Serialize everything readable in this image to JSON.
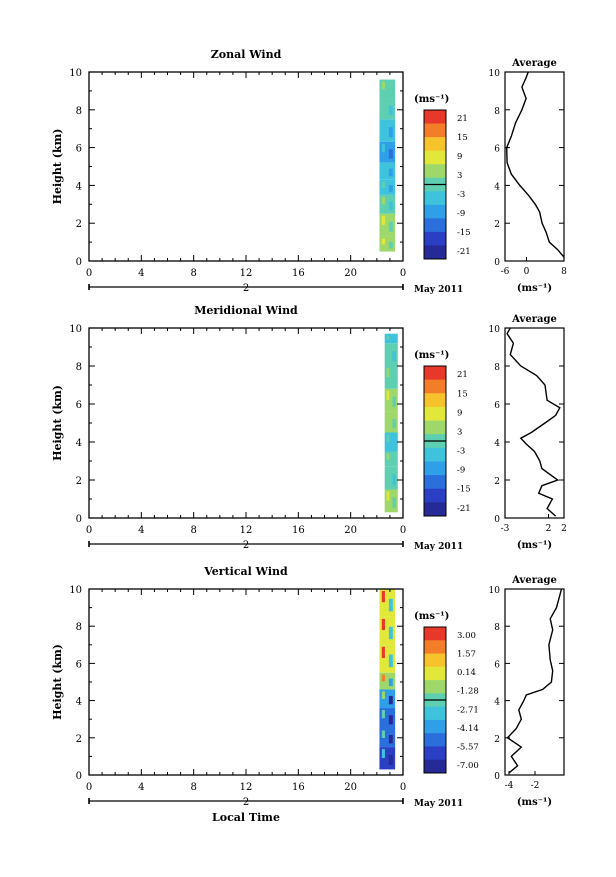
{
  "chart_data": [
    {
      "type": "heatmap",
      "title": "Zonal Wind",
      "ylabel": "Height (km)",
      "xlabel": "",
      "xticks": [
        "0",
        "4",
        "8",
        "12",
        "16",
        "20",
        "0"
      ],
      "yticks": [
        "0",
        "2",
        "4",
        "6",
        "8",
        "10"
      ],
      "day_label": "2",
      "month_label": "May 2011",
      "ylim": [
        0,
        10
      ],
      "xlim": [
        0,
        24
      ],
      "colorbar": {
        "unit": "(ms⁻¹)",
        "labels": [
          "21",
          "15",
          "9",
          "3",
          "-3",
          "-9",
          "-15",
          "-21"
        ]
      },
      "data_x_range": [
        22.2,
        23.4
      ],
      "strip": [
        {
          "y0": 0.5,
          "y1": 1.3,
          "v": 5
        },
        {
          "y0": 1.3,
          "y1": 2.5,
          "v": 4
        },
        {
          "y0": 2.5,
          "y1": 3.5,
          "v": 0
        },
        {
          "y0": 3.5,
          "y1": 4.3,
          "v": -5
        },
        {
          "y0": 4.3,
          "y1": 5.2,
          "v": -6
        },
        {
          "y0": 5.2,
          "y1": 6.3,
          "v": -9
        },
        {
          "y0": 6.3,
          "y1": 7.5,
          "v": -6
        },
        {
          "y0": 7.5,
          "y1": 8.6,
          "v": -2
        },
        {
          "y0": 8.6,
          "y1": 9.6,
          "v": 1
        }
      ],
      "average": {
        "title": "Average",
        "xticks": [
          "-6",
          "0",
          "8"
        ],
        "xlim": [
          -6,
          8
        ],
        "unit": "(ms⁻¹)",
        "profile": [
          [
            8.0,
            0.2
          ],
          [
            6.5,
            0.6
          ],
          [
            4.5,
            1.0
          ],
          [
            3.8,
            1.5
          ],
          [
            2.8,
            2.0
          ],
          [
            2.2,
            2.6
          ],
          [
            1.2,
            3.0
          ],
          [
            -0.5,
            3.5
          ],
          [
            -2.5,
            4.0
          ],
          [
            -4.5,
            4.6
          ],
          [
            -5.5,
            5.2
          ],
          [
            -5.6,
            6.0
          ],
          [
            -4.5,
            6.6
          ],
          [
            -3.5,
            7.3
          ],
          [
            -2.0,
            8.0
          ],
          [
            -1.0,
            8.6
          ],
          [
            -2.0,
            9.2
          ],
          [
            -1.0,
            9.7
          ],
          [
            -0.5,
            10.0
          ]
        ]
      }
    },
    {
      "type": "heatmap",
      "title": "Meridional Wind",
      "ylabel": "Height (km)",
      "xlabel": "",
      "xticks": [
        "0",
        "4",
        "8",
        "12",
        "16",
        "20",
        "0"
      ],
      "yticks": [
        "0",
        "2",
        "4",
        "6",
        "8",
        "10"
      ],
      "day_label": "2",
      "month_label": "May 2011",
      "ylim": [
        0,
        10
      ],
      "xlim": [
        0,
        24
      ],
      "colorbar": {
        "unit": "(ms⁻¹)",
        "labels": [
          "21",
          "15",
          "9",
          "3",
          "-3",
          "-9",
          "-15",
          "-21"
        ]
      },
      "data_x_range": [
        22.6,
        23.6
      ],
      "strip": [
        {
          "y0": 0.3,
          "y1": 1.5,
          "v": 4
        },
        {
          "y0": 1.5,
          "y1": 2.7,
          "v": -1
        },
        {
          "y0": 2.7,
          "y1": 3.5,
          "v": 2
        },
        {
          "y0": 3.5,
          "y1": 4.5,
          "v": -3
        },
        {
          "y0": 4.5,
          "y1": 5.6,
          "v": 3
        },
        {
          "y0": 5.6,
          "y1": 6.8,
          "v": 5
        },
        {
          "y0": 6.8,
          "y1": 8.0,
          "v": 2
        },
        {
          "y0": 8.0,
          "y1": 9.2,
          "v": -1
        },
        {
          "y0": 9.2,
          "y1": 9.7,
          "v": -3
        }
      ],
      "average": {
        "title": "Average",
        "xticks": [
          "-3",
          "2",
          "2"
        ],
        "xlim": [
          -3,
          2.6
        ],
        "unit": "(ms⁻¹)",
        "profile": [
          [
            1.8,
            0.1
          ],
          [
            1.0,
            0.5
          ],
          [
            1.5,
            1.0
          ],
          [
            0.2,
            1.3
          ],
          [
            0.5,
            1.7
          ],
          [
            2.0,
            2.0
          ],
          [
            0.5,
            2.6
          ],
          [
            0.3,
            3.0
          ],
          [
            -0.2,
            3.5
          ],
          [
            -1.0,
            3.9
          ],
          [
            -1.5,
            4.2
          ],
          [
            -0.5,
            4.5
          ],
          [
            0.8,
            5.0
          ],
          [
            1.8,
            5.4
          ],
          [
            2.2,
            5.8
          ],
          [
            1.0,
            6.2
          ],
          [
            0.8,
            7.0
          ],
          [
            0.0,
            7.5
          ],
          [
            -1.5,
            8.0
          ],
          [
            -2.5,
            8.6
          ],
          [
            -2.2,
            9.2
          ],
          [
            -2.8,
            9.7
          ],
          [
            -2.5,
            10.0
          ]
        ]
      }
    },
    {
      "type": "heatmap",
      "title": "Vertical Wind",
      "ylabel": "Height (km)",
      "xlabel": "Local Time",
      "xticks": [
        "0",
        "4",
        "8",
        "12",
        "16",
        "20",
        "0"
      ],
      "yticks": [
        "0",
        "2",
        "4",
        "6",
        "8",
        "10"
      ],
      "day_label": "2",
      "month_label": "May 2011",
      "ylim": [
        0,
        10
      ],
      "xlim": [
        0,
        24
      ],
      "colorbar": {
        "unit": "(ms⁻¹)",
        "labels": [
          "3.00",
          "1.57",
          "0.14",
          "-1.28",
          "-2.71",
          "-4.14",
          "-5.57",
          "-7.00"
        ]
      },
      "data_x_range": [
        22.2,
        23.4
      ],
      "strip": [
        {
          "y0": 0.3,
          "y1": 1.5,
          "v": -5.8
        },
        {
          "y0": 1.5,
          "y1": 2.5,
          "v": -5.0
        },
        {
          "y0": 2.5,
          "y1": 3.6,
          "v": -4.6
        },
        {
          "y0": 3.6,
          "y1": 4.6,
          "v": -4.0
        },
        {
          "y0": 4.6,
          "y1": 5.5,
          "v": -0.8
        },
        {
          "y0": 5.5,
          "y1": 7.0,
          "v": -0.3
        },
        {
          "y0": 7.0,
          "y1": 8.5,
          "v": -0.1
        },
        {
          "y0": 8.5,
          "y1": 10.0,
          "v": 0.4
        }
      ],
      "average": {
        "title": "Average",
        "xticks": [
          "-4",
          "-2"
        ],
        "xlim": [
          -4.5,
          0.2
        ],
        "unit": "(ms⁻¹)",
        "profile": [
          [
            -4.2,
            0.1
          ],
          [
            -3.5,
            0.5
          ],
          [
            -4.0,
            1.0
          ],
          [
            -3.2,
            1.5
          ],
          [
            -4.3,
            2.0
          ],
          [
            -3.6,
            2.5
          ],
          [
            -3.2,
            3.0
          ],
          [
            -3.4,
            3.5
          ],
          [
            -3.0,
            4.0
          ],
          [
            -2.8,
            4.3
          ],
          [
            -1.5,
            4.6
          ],
          [
            -0.8,
            5.0
          ],
          [
            -0.7,
            5.6
          ],
          [
            -0.9,
            6.2
          ],
          [
            -1.0,
            7.0
          ],
          [
            -0.7,
            7.8
          ],
          [
            -0.9,
            8.4
          ],
          [
            -0.4,
            9.0
          ],
          [
            -0.2,
            9.5
          ],
          [
            0.0,
            10.0
          ]
        ]
      }
    }
  ]
}
